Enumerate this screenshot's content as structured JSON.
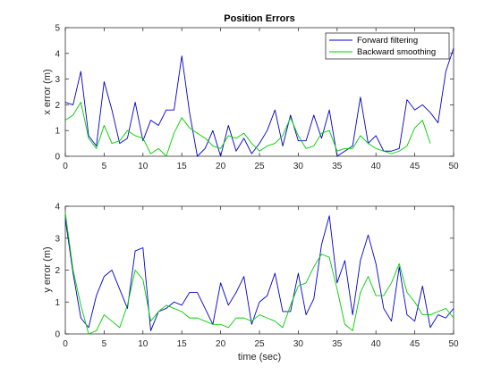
{
  "chart_data": {
    "type": "line",
    "title": "Position Errors",
    "xlabel": "time (sec)",
    "grid": false,
    "legend_position": "top-right",
    "colors": {
      "Forward filtering": "#0000cc",
      "Backward smoothing": "#00cc00",
      "axes": "#262626"
    },
    "subplots": [
      {
        "ylabel": "x error (m)",
        "xlim": [
          0,
          50
        ],
        "ylim": [
          0,
          5
        ],
        "xticks": [
          0,
          5,
          10,
          15,
          20,
          25,
          30,
          35,
          40,
          45,
          50
        ],
        "yticks": [
          0,
          1,
          2,
          3,
          4,
          5
        ],
        "legend": [
          "Forward filtering",
          "Backward smoothing"
        ],
        "series": [
          {
            "name": "Forward filtering",
            "color": "#0000cc",
            "x": [
              0,
              1,
              2,
              3,
              4,
              5,
              6,
              7,
              8,
              9,
              10,
              11,
              12,
              13,
              14,
              15,
              16,
              17,
              18,
              19,
              20,
              21,
              22,
              23,
              24,
              25,
              26,
              27,
              28,
              29,
              30,
              31,
              32,
              33,
              34,
              35,
              36,
              37,
              38,
              39,
              40,
              41,
              42,
              43,
              44,
              45,
              46,
              47,
              48,
              49,
              50
            ],
            "y": [
              2.1,
              2.0,
              3.3,
              0.8,
              0.4,
              2.9,
              1.8,
              0.5,
              0.7,
              2.1,
              0.6,
              1.4,
              1.2,
              1.8,
              1.8,
              3.9,
              1.7,
              0.0,
              0.3,
              1.0,
              0.0,
              1.2,
              0.2,
              0.7,
              0.1,
              0.5,
              1.0,
              1.8,
              0.4,
              1.6,
              0.6,
              0.6,
              1.6,
              0.7,
              1.8,
              0.0,
              0.2,
              0.4,
              2.3,
              0.5,
              0.8,
              0.2,
              0.2,
              0.3,
              2.2,
              1.8,
              2.0,
              1.7,
              1.3,
              3.3,
              4.2
            ]
          },
          {
            "name": "Backward smoothing",
            "color": "#00cc00",
            "x": [
              0,
              1,
              2,
              3,
              4,
              5,
              6,
              7,
              8,
              9,
              10,
              11,
              12,
              13,
              14,
              15,
              16,
              17,
              18,
              19,
              20,
              21,
              22,
              23,
              24,
              25,
              26,
              27,
              28,
              29,
              30,
              31,
              32,
              33,
              34,
              35,
              36,
              37,
              38,
              39,
              40,
              41,
              42,
              43,
              44,
              45,
              46,
              47
            ],
            "y": [
              1.4,
              1.6,
              2.1,
              0.7,
              0.3,
              1.2,
              0.5,
              0.6,
              1.0,
              0.8,
              0.7,
              0.1,
              0.3,
              0.0,
              0.9,
              1.5,
              1.1,
              0.9,
              0.7,
              0.4,
              0.3,
              0.8,
              0.7,
              0.9,
              0.5,
              0.2,
              0.4,
              0.5,
              0.8,
              1.5,
              0.8,
              0.3,
              0.4,
              0.9,
              1.0,
              0.2,
              0.3,
              0.3,
              0.8,
              0.5,
              0.3,
              0.2,
              0.1,
              0.2,
              0.4,
              1.1,
              1.4,
              0.5
            ]
          }
        ]
      },
      {
        "ylabel": "y error (m)",
        "xlim": [
          0,
          50
        ],
        "ylim": [
          0,
          4
        ],
        "xticks": [
          0,
          5,
          10,
          15,
          20,
          25,
          30,
          35,
          40,
          45,
          50
        ],
        "yticks": [
          0,
          1,
          2,
          3,
          4
        ],
        "series": [
          {
            "name": "Forward filtering",
            "color": "#0000cc",
            "x": [
              0,
              1,
              2,
              3,
              4,
              5,
              6,
              7,
              8,
              9,
              10,
              11,
              12,
              13,
              14,
              15,
              16,
              17,
              18,
              19,
              20,
              21,
              22,
              23,
              24,
              25,
              26,
              27,
              28,
              29,
              30,
              31,
              32,
              33,
              34,
              35,
              36,
              37,
              38,
              39,
              40,
              41,
              42,
              43,
              44,
              45,
              46,
              47,
              48,
              49,
              50
            ],
            "y": [
              3.6,
              1.9,
              0.5,
              0.2,
              1.2,
              1.8,
              2.0,
              1.4,
              0.8,
              2.6,
              2.7,
              0.1,
              0.7,
              0.8,
              1.0,
              0.9,
              1.3,
              1.3,
              0.8,
              0.3,
              1.6,
              0.9,
              1.3,
              1.8,
              0.3,
              1.0,
              1.2,
              1.9,
              0.7,
              0.7,
              1.9,
              0.6,
              1.1,
              2.8,
              3.7,
              1.6,
              2.3,
              0.6,
              2.3,
              3.1,
              2.2,
              0.8,
              0.4,
              2.1,
              0.6,
              0.4,
              1.5,
              0.2,
              0.6,
              0.5,
              0.8
            ]
          },
          {
            "name": "Backward smoothing",
            "color": "#00cc00",
            "x": [
              0,
              1,
              2,
              3,
              4,
              5,
              6,
              7,
              8,
              9,
              10,
              11,
              12,
              13,
              14,
              15,
              16,
              17,
              18,
              19,
              20,
              21,
              22,
              23,
              24,
              25,
              26,
              27,
              28,
              29,
              30,
              31,
              32,
              33,
              34,
              35,
              36,
              37,
              38,
              39,
              40,
              41,
              42,
              43,
              44,
              45,
              46,
              47,
              48,
              49,
              50
            ],
            "y": [
              3.8,
              2.0,
              0.9,
              0.0,
              0.1,
              0.6,
              0.4,
              0.2,
              0.9,
              2.0,
              1.7,
              0.4,
              0.7,
              0.9,
              0.8,
              0.7,
              0.5,
              0.5,
              0.4,
              0.3,
              0.3,
              0.2,
              0.5,
              0.5,
              0.4,
              0.6,
              0.5,
              0.4,
              0.2,
              0.9,
              1.5,
              1.6,
              2.1,
              2.5,
              2.4,
              1.4,
              0.3,
              0.1,
              1.3,
              1.8,
              1.2,
              1.2,
              1.6,
              2.2,
              1.3,
              1.0,
              0.6,
              0.6,
              0.7,
              0.8,
              0.5
            ]
          }
        ]
      }
    ]
  }
}
